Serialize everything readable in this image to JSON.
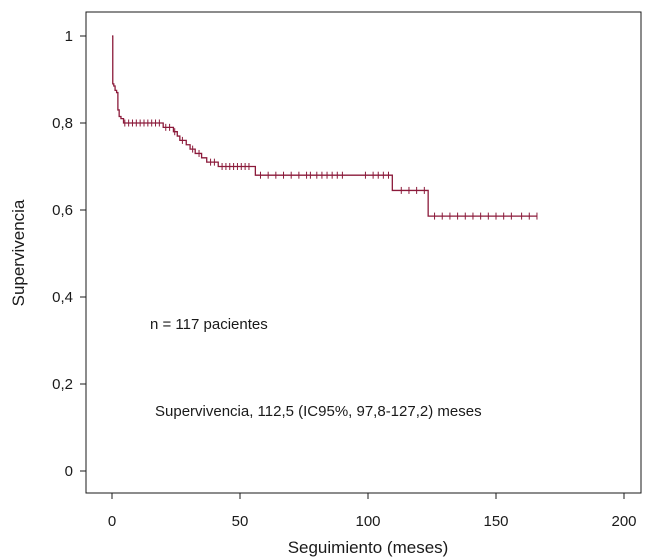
{
  "chart_data": {
    "type": "line",
    "xlabel": "Seguimiento (meses)",
    "ylabel": "Supervivencia",
    "xlim": [
      0,
      200
    ],
    "ylim": [
      0,
      1
    ],
    "x_ticks": [
      0,
      50,
      100,
      150,
      200
    ],
    "x_tick_labels": [
      "0",
      "50",
      "100",
      "150",
      "200"
    ],
    "y_ticks": [
      0,
      0.2,
      0.4,
      0.6,
      0.8,
      1
    ],
    "y_tick_labels": [
      "0",
      "0,2",
      "0,4",
      "0,6",
      "0,8",
      "1"
    ],
    "grid": false,
    "line_color": "#8b1a3a",
    "annotations": [
      "n = 117 pacientes",
      "Supervivencia, 112,5 (IC95%, 97,8-127,2) meses"
    ],
    "series": [
      {
        "steps": [
          [
            0,
            1.0
          ],
          [
            0.3,
            0.89
          ],
          [
            0.7,
            0.885
          ],
          [
            1.2,
            0.875
          ],
          [
            1.8,
            0.87
          ],
          [
            2.3,
            0.83
          ],
          [
            2.8,
            0.815
          ],
          [
            3.5,
            0.81
          ],
          [
            4.5,
            0.8
          ],
          [
            20,
            0.79
          ],
          [
            24,
            0.78
          ],
          [
            25.5,
            0.77
          ],
          [
            26.5,
            0.76
          ],
          [
            29,
            0.75
          ],
          [
            30.5,
            0.74
          ],
          [
            32.5,
            0.73
          ],
          [
            35,
            0.72
          ],
          [
            37,
            0.71
          ],
          [
            41.5,
            0.7
          ],
          [
            56,
            0.68
          ],
          [
            109.5,
            0.645
          ],
          [
            123.5,
            0.586
          ],
          [
            166,
            0.586
          ]
        ],
        "censored": [
          [
            5,
            0.8
          ],
          [
            6.5,
            0.8
          ],
          [
            8,
            0.8
          ],
          [
            9.5,
            0.8
          ],
          [
            11,
            0.8
          ],
          [
            12.5,
            0.8
          ],
          [
            14,
            0.8
          ],
          [
            15.5,
            0.8
          ],
          [
            17,
            0.8
          ],
          [
            18.5,
            0.8
          ],
          [
            21,
            0.79
          ],
          [
            22.5,
            0.79
          ],
          [
            24.5,
            0.78
          ],
          [
            27.5,
            0.76
          ],
          [
            31.5,
            0.74
          ],
          [
            34,
            0.73
          ],
          [
            38.5,
            0.71
          ],
          [
            40,
            0.71
          ],
          [
            43,
            0.7
          ],
          [
            44.5,
            0.7
          ],
          [
            46,
            0.7
          ],
          [
            47.5,
            0.7
          ],
          [
            49,
            0.7
          ],
          [
            50.5,
            0.7
          ],
          [
            52,
            0.7
          ],
          [
            53.5,
            0.7
          ],
          [
            58,
            0.68
          ],
          [
            61,
            0.68
          ],
          [
            64,
            0.68
          ],
          [
            67,
            0.68
          ],
          [
            70,
            0.68
          ],
          [
            73,
            0.68
          ],
          [
            76,
            0.68
          ],
          [
            77.5,
            0.68
          ],
          [
            80,
            0.68
          ],
          [
            82,
            0.68
          ],
          [
            84,
            0.68
          ],
          [
            86,
            0.68
          ],
          [
            88,
            0.68
          ],
          [
            90,
            0.68
          ],
          [
            99,
            0.68
          ],
          [
            102,
            0.68
          ],
          [
            104,
            0.68
          ],
          [
            106,
            0.68
          ],
          [
            108,
            0.68
          ],
          [
            113,
            0.645
          ],
          [
            116,
            0.645
          ],
          [
            119,
            0.645
          ],
          [
            122,
            0.645
          ],
          [
            126,
            0.586
          ],
          [
            129,
            0.586
          ],
          [
            132,
            0.586
          ],
          [
            135,
            0.586
          ],
          [
            138,
            0.586
          ],
          [
            141,
            0.586
          ],
          [
            144,
            0.586
          ],
          [
            147,
            0.586
          ],
          [
            150,
            0.586
          ],
          [
            153,
            0.586
          ],
          [
            156,
            0.586
          ],
          [
            160,
            0.586
          ],
          [
            163,
            0.586
          ],
          [
            166,
            0.586
          ]
        ]
      }
    ]
  }
}
